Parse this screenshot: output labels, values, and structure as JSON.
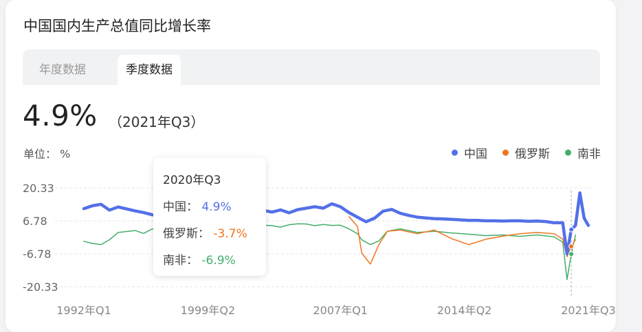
{
  "title": "中国国内生产总值同比增长率",
  "tabs": [
    {
      "label": "年度数据",
      "active": false
    },
    {
      "label": "季度数据",
      "active": true
    }
  ],
  "current": {
    "value": "4.9%",
    "period": "（2021年Q3）"
  },
  "unit_label": "单位：  %",
  "legend": [
    {
      "label": "中国",
      "color": "#5470e8"
    },
    {
      "label": "俄罗斯",
      "color": "#f0741e"
    },
    {
      "label": "南非",
      "color": "#43ad6b"
    }
  ],
  "tooltip": {
    "title": "2020年Q3",
    "rows": [
      {
        "name": "中国：",
        "value": "4.9%",
        "color": "#5470e8"
      },
      {
        "name": "俄罗斯：",
        "value": "-3.7%",
        "color": "#f0741e"
      },
      {
        "name": "南非：",
        "value": "-6.9%",
        "color": "#43ad6b"
      }
    ]
  },
  "chart_data": {
    "type": "line",
    "ylim": [
      -20.33,
      20.33
    ],
    "y_ticks": [
      "20.33",
      "6.78",
      "-6.78",
      "-20.33"
    ],
    "x_tick_labels": [
      "1992年Q1",
      "1999年Q2",
      "2007年Q1",
      "2014年Q2",
      "2021年Q3"
    ],
    "x_tick_index": [
      0,
      29,
      60,
      89,
      118
    ],
    "hover_index": 114,
    "series": [
      {
        "name": "中国",
        "color": "#5470e8",
        "x": [
          0,
          2,
          4,
          6,
          8,
          10,
          12,
          14,
          16,
          18,
          20,
          22,
          24,
          26,
          28,
          30,
          32,
          34,
          36,
          38,
          40,
          42,
          44,
          46,
          48,
          50,
          52,
          54,
          56,
          58,
          60,
          62,
          64,
          66,
          68,
          70,
          72,
          74,
          76,
          78,
          80,
          82,
          84,
          86,
          88,
          90,
          92,
          94,
          96,
          98,
          100,
          102,
          104,
          106,
          108,
          110,
          112,
          113,
          114,
          115,
          116,
          117,
          118
        ],
        "y": [
          11.8,
          13.0,
          13.6,
          11.2,
          12.5,
          11.7,
          10.9,
          10.2,
          9.3,
          9.0,
          8.2,
          7.8,
          7.6,
          8.0,
          8.6,
          8.4,
          8.1,
          8.8,
          8.3,
          9.0,
          10.0,
          11.1,
          10.4,
          11.3,
          10.1,
          11.4,
          12.0,
          12.6,
          12.0,
          13.8,
          12.6,
          10.2,
          8.3,
          6.4,
          7.9,
          10.8,
          11.5,
          9.9,
          9.0,
          8.3,
          8.0,
          7.7,
          7.6,
          7.4,
          7.2,
          7.0,
          7.0,
          6.8,
          6.8,
          6.7,
          6.8,
          6.8,
          6.6,
          6.7,
          6.5,
          6.0,
          6.0,
          -6.8,
          3.2,
          4.9,
          18.3,
          7.9,
          4.9
        ]
      },
      {
        "name": "俄罗斯",
        "color": "#f0741e",
        "x": [
          62,
          64,
          65,
          67,
          69,
          71,
          74,
          78,
          82,
          86,
          90,
          94,
          98,
          102,
          106,
          110,
          112,
          113,
          114,
          115
        ],
        "y": [
          8.5,
          4.5,
          -6.5,
          -11.0,
          -3.0,
          2.5,
          3.0,
          1.5,
          3.0,
          -0.5,
          -3.0,
          -0.8,
          0.5,
          1.5,
          2.0,
          1.5,
          -0.7,
          -8.0,
          -3.7,
          -1.0
        ]
      },
      {
        "name": "南非",
        "color": "#43ad6b",
        "x": [
          0,
          2,
          4,
          6,
          8,
          10,
          12,
          14,
          16,
          18,
          20,
          22,
          24,
          26,
          28,
          30,
          32,
          34,
          36,
          38,
          40,
          42,
          44,
          46,
          48,
          50,
          52,
          54,
          56,
          58,
          60,
          62,
          64,
          65,
          67,
          69,
          71,
          74,
          78,
          82,
          86,
          90,
          94,
          98,
          102,
          106,
          110,
          112,
          113,
          114,
          115
        ],
        "y": [
          -1.6,
          -2.5,
          -3.0,
          -1.0,
          2.0,
          2.4,
          2.8,
          1.6,
          3.5,
          1.6,
          1.2,
          2.5,
          4.0,
          3.2,
          3.8,
          4.3,
          4.5,
          3.0,
          3.5,
          2.0,
          4.5,
          5.0,
          4.8,
          4.2,
          5.2,
          5.6,
          5.5,
          4.8,
          5.3,
          4.9,
          5.0,
          3.5,
          1.5,
          -1.0,
          -3.0,
          -1.5,
          2.5,
          3.5,
          2.0,
          2.5,
          1.8,
          1.3,
          0.7,
          1.0,
          0.4,
          1.0,
          0.2,
          -2.0,
          -17.4,
          -6.9,
          1.0
        ]
      }
    ]
  }
}
